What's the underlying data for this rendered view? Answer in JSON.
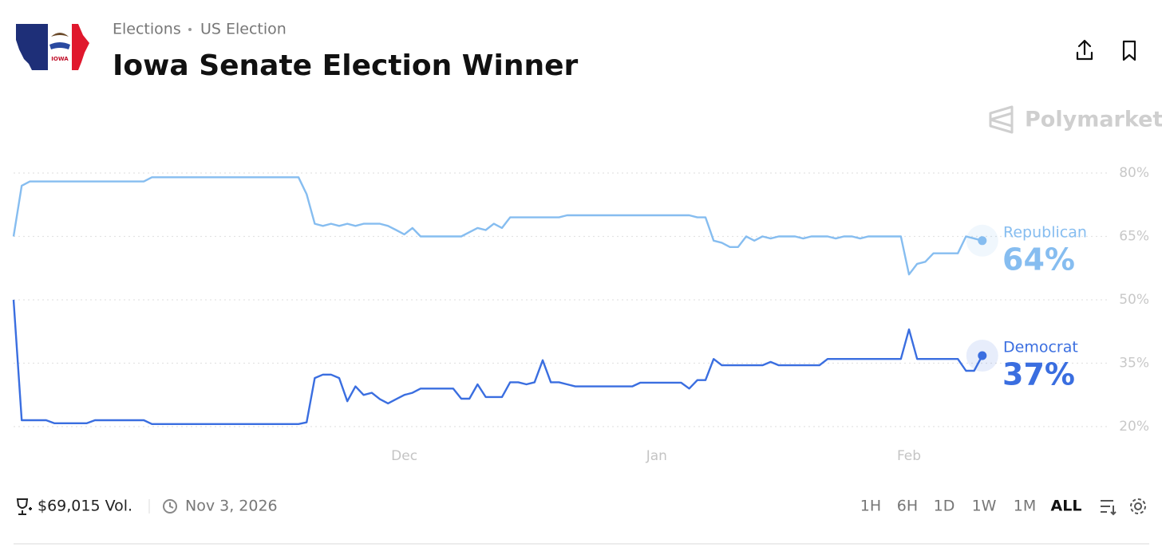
{
  "header": {
    "breadcrumbs": [
      "Elections",
      "US Election"
    ],
    "title": "Iowa Senate Election Winner",
    "flag_text": "IOWA",
    "brand": "Polymarket"
  },
  "chart_data": {
    "type": "line",
    "categories": [
      null,
      null,
      null,
      null,
      null,
      null,
      null,
      null,
      null,
      null,
      null,
      null,
      null,
      null,
      null,
      null,
      null,
      null,
      null,
      null,
      null,
      null,
      null,
      null,
      null,
      null,
      null,
      null,
      null,
      null,
      null,
      null,
      null,
      null,
      null,
      null,
      null,
      null,
      null,
      null,
      null,
      null,
      null,
      null,
      null,
      null,
      null,
      null,
      "Dec",
      null,
      null,
      null,
      null,
      null,
      null,
      null,
      null,
      null,
      null,
      null,
      null,
      null,
      null,
      null,
      null,
      null,
      null,
      null,
      null,
      null,
      null,
      null,
      null,
      null,
      null,
      null,
      null,
      null,
      null,
      "Jan",
      null,
      null,
      null,
      null,
      null,
      null,
      null,
      null,
      null,
      null,
      null,
      null,
      null,
      null,
      null,
      null,
      null,
      null,
      null,
      null,
      null,
      null,
      null,
      null,
      null,
      null,
      null,
      null,
      null,
      null,
      "Feb",
      null,
      null,
      null,
      null,
      null,
      null,
      null,
      null,
      null
    ],
    "series": [
      {
        "name": "Republican",
        "color": "#86bdf0",
        "last_label": "64%",
        "values": [
          65,
          77,
          78,
          78,
          78,
          78,
          78,
          78,
          78,
          78,
          78,
          78,
          78,
          78,
          78,
          78,
          78,
          79,
          79,
          79,
          79,
          79,
          79,
          79,
          79,
          79,
          79,
          79,
          79,
          79,
          79,
          79,
          79,
          79,
          79,
          79,
          75,
          68,
          67.5,
          68,
          67.5,
          68,
          67.5,
          68,
          68,
          68,
          67.5,
          66.5,
          65.5,
          67,
          65,
          65,
          65,
          65,
          65,
          65,
          66,
          67,
          66.5,
          68,
          67,
          69.5,
          69.5,
          69.5,
          69.5,
          69.5,
          69.5,
          69.5,
          70,
          70,
          70,
          70,
          70,
          70,
          70,
          70,
          70,
          70,
          70,
          70,
          70,
          70,
          70,
          70,
          69.5,
          69.5,
          64,
          63.5,
          62.5,
          62.5,
          65,
          64,
          65,
          64.5,
          65,
          65,
          65,
          64.5,
          65,
          65,
          65,
          64.5,
          65,
          65,
          64.5,
          65,
          65,
          65,
          65,
          65,
          56,
          58.5,
          59,
          61,
          61,
          61,
          61,
          65,
          64.5,
          64
        ]
      },
      {
        "name": "Democrat",
        "color": "#3a6ee0",
        "last_label": "37%",
        "values": [
          50,
          21.5,
          21.5,
          21.5,
          21.5,
          20.8,
          20.8,
          20.8,
          20.8,
          20.8,
          21.5,
          21.5,
          21.5,
          21.5,
          21.5,
          21.5,
          21.5,
          20.6,
          20.6,
          20.6,
          20.6,
          20.6,
          20.6,
          20.6,
          20.6,
          20.6,
          20.6,
          20.6,
          20.6,
          20.6,
          20.6,
          20.6,
          20.6,
          20.6,
          20.6,
          20.6,
          21,
          31.5,
          32.3,
          32.3,
          31.5,
          26,
          29.5,
          27.5,
          28,
          26.5,
          25.5,
          26.5,
          27.5,
          28,
          29,
          29,
          29,
          29,
          29,
          26.6,
          26.6,
          30,
          27,
          27,
          27,
          30.5,
          30.5,
          30,
          30.5,
          35.7,
          30.5,
          30.5,
          30,
          29.5,
          29.5,
          29.5,
          29.5,
          29.5,
          29.5,
          29.5,
          29.5,
          30.4,
          30.4,
          30.4,
          30.4,
          30.4,
          30.4,
          29,
          31,
          31,
          36,
          34.5,
          34.5,
          34.5,
          34.5,
          34.5,
          34.5,
          35.3,
          34.5,
          34.5,
          34.5,
          34.5,
          34.5,
          34.5,
          36,
          36,
          36,
          36,
          36,
          36,
          36,
          36,
          36,
          36,
          43,
          36,
          36,
          36,
          36,
          36,
          36,
          33.2,
          33.2,
          36.8
        ]
      }
    ],
    "ylim": [
      15,
      85
    ],
    "yticks": [
      {
        "value": 20,
        "label": "20%"
      },
      {
        "value": 35,
        "label": "35%"
      },
      {
        "value": 50,
        "label": "50%"
      },
      {
        "value": 65,
        "label": "65%"
      },
      {
        "value": 80,
        "label": "80%"
      }
    ],
    "grid": true
  },
  "footer": {
    "volume": "$69,015 Vol.",
    "date": "Nov 3, 2026",
    "timeframes": [
      "1H",
      "6H",
      "1D",
      "1W",
      "1M",
      "ALL"
    ],
    "active": "ALL"
  }
}
